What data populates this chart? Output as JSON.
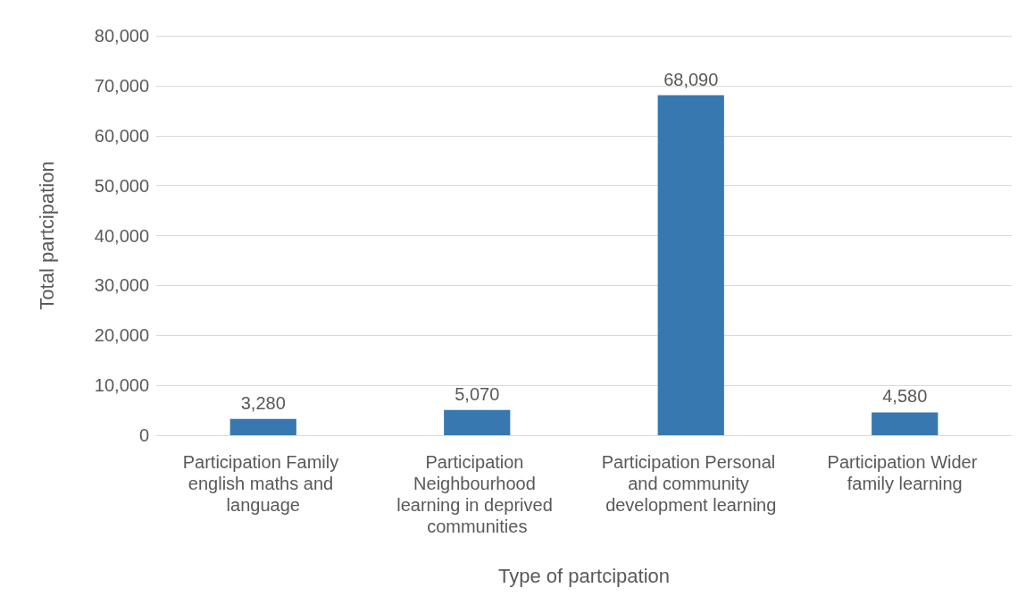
{
  "chart_data": {
    "type": "bar",
    "xlabel": "Type of partcipation",
    "ylabel": "Total partcipation",
    "categories": [
      "Participation Family english maths and language",
      "Participation Neighbourhood learning in deprived communities",
      "Participation Personal and community development learning",
      "Participation Wider family learning"
    ],
    "values": [
      3280,
      5070,
      68090,
      4580
    ],
    "value_labels": [
      "3,280",
      "5,070",
      "68,090",
      "4,580"
    ],
    "color": "#3878b0",
    "ylim": [
      0,
      80000
    ],
    "yticks": [
      0,
      {
        "value": 10000,
        "label": "10,000"
      },
      {
        "value": 20000,
        "label": "20,000"
      },
      {
        "value": 30000,
        "label": "30,000"
      },
      {
        "value": 40000,
        "label": "40,000"
      },
      {
        "value": 50000,
        "label": "50,000"
      },
      {
        "value": 60000,
        "label": "60,000"
      },
      {
        "value": 70000,
        "label": "70,000"
      },
      {
        "value": 80000,
        "label": "80,000"
      }
    ],
    "grid": "y"
  }
}
